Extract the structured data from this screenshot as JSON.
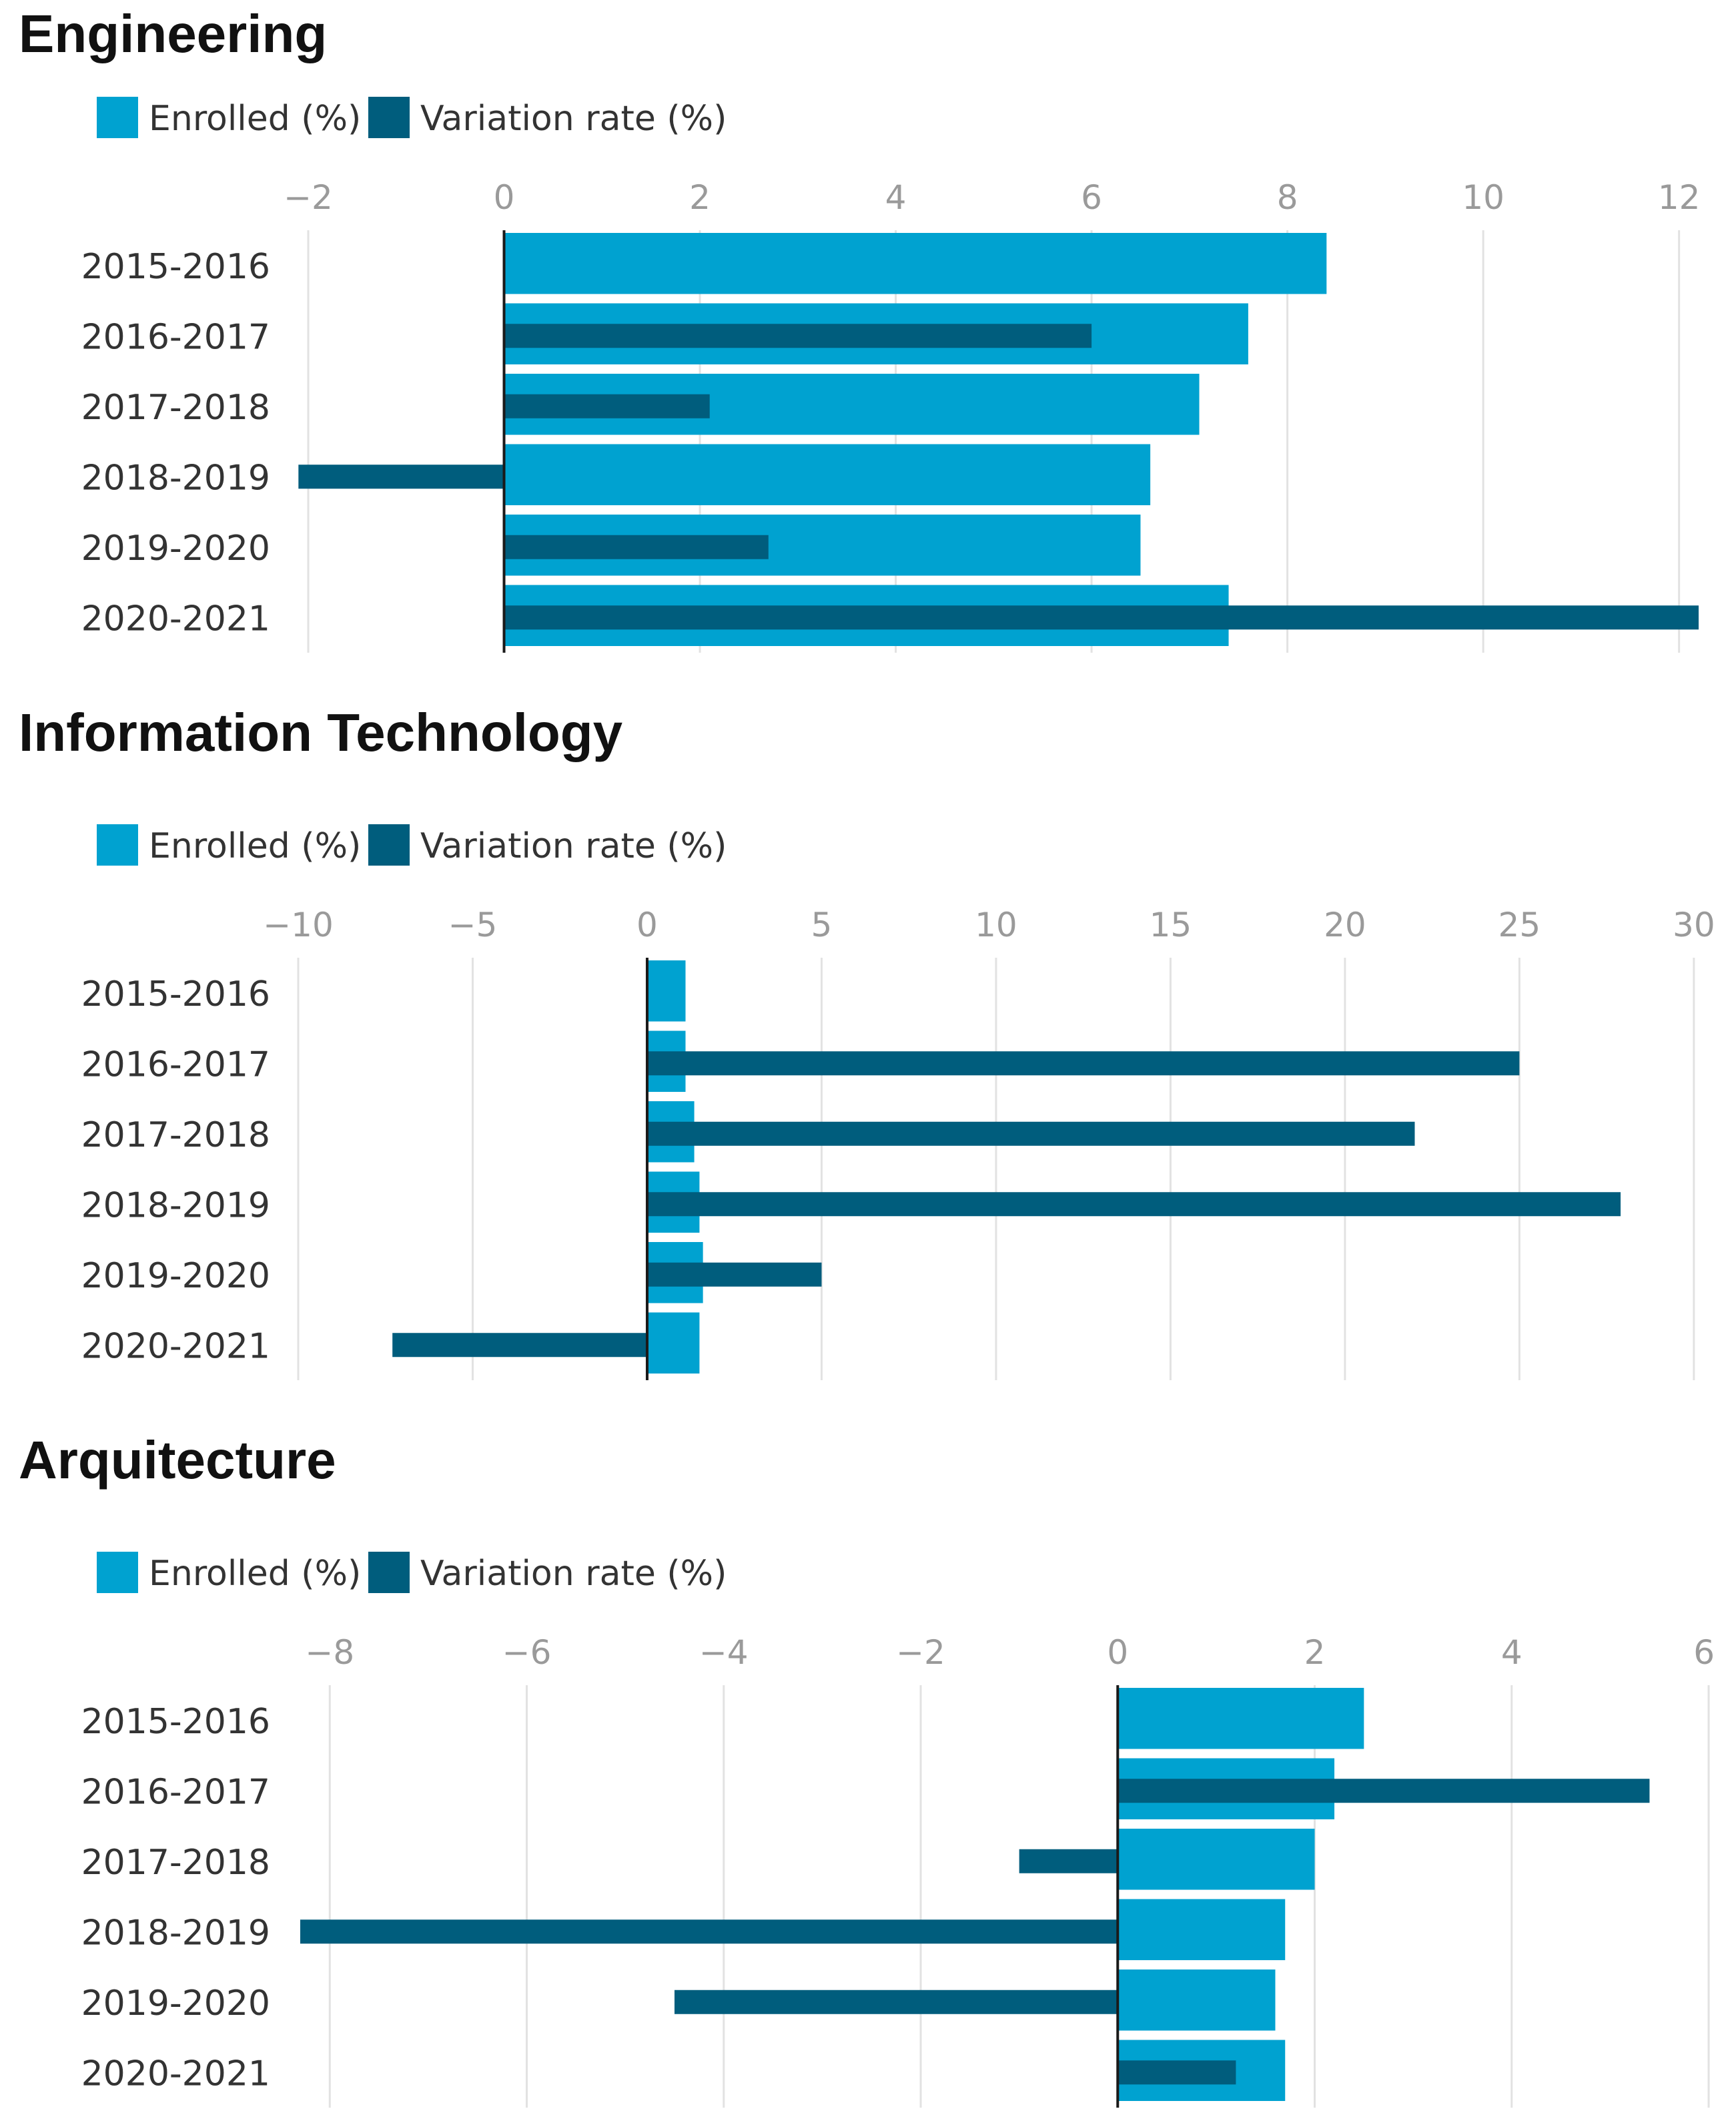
{
  "colors": {
    "enrolled": "#00a2d0",
    "variation": "#005d7d",
    "grid": "#e2e2e2",
    "axis": "#1a1a1a"
  },
  "chart_data": [
    {
      "type": "bar",
      "orientation": "horizontal",
      "title": "Engineering",
      "categories": [
        "2015-2016",
        "2016-2017",
        "2017-2018",
        "2018-2019",
        "2019-2020",
        "2020-2021"
      ],
      "series": [
        {
          "name": "Enrolled (%)",
          "values": [
            8.4,
            7.6,
            7.1,
            6.6,
            6.5,
            7.4
          ]
        },
        {
          "name": "Variation rate (%)",
          "values": [
            null,
            6.0,
            2.1,
            -2.1,
            2.7,
            12.2
          ]
        }
      ],
      "xlim": [
        -2,
        12.2
      ],
      "ticks": [
        -2,
        0,
        2,
        4,
        6,
        8,
        10,
        12
      ],
      "tick_labels": [
        "−2",
        "0",
        "2",
        "4",
        "6",
        "8",
        "10",
        "12"
      ],
      "legend": "top-left",
      "grid": true
    },
    {
      "type": "bar",
      "orientation": "horizontal",
      "title": "Information Technology",
      "categories": [
        "2015-2016",
        "2016-2017",
        "2017-2018",
        "2018-2019",
        "2019-2020",
        "2020-2021"
      ],
      "series": [
        {
          "name": "Enrolled (%)",
          "values": [
            1.1,
            1.1,
            1.35,
            1.5,
            1.6,
            1.5
          ]
        },
        {
          "name": "Variation rate (%)",
          "values": [
            null,
            25.0,
            22.0,
            27.9,
            5.0,
            -7.3
          ]
        }
      ],
      "xlim": [
        -10,
        30.5
      ],
      "ticks": [
        -10,
        -5,
        0,
        5,
        10,
        15,
        20,
        25,
        30
      ],
      "tick_labels": [
        "−10",
        "−5",
        "0",
        "5",
        "10",
        "15",
        "20",
        "25",
        "30"
      ],
      "legend": "top-left",
      "grid": true
    },
    {
      "type": "bar",
      "orientation": "horizontal",
      "title": "Arquitecture",
      "categories": [
        "2015-2016",
        "2016-2017",
        "2017-2018",
        "2018-2019",
        "2019-2020",
        "2020-2021"
      ],
      "series": [
        {
          "name": "Enrolled (%)",
          "values": [
            2.5,
            2.2,
            2.0,
            1.7,
            1.6,
            1.7
          ]
        },
        {
          "name": "Variation rate (%)",
          "values": [
            null,
            5.4,
            -1.0,
            -8.3,
            -4.5,
            1.2
          ]
        }
      ],
      "xlim": [
        -8.3,
        6
      ],
      "ticks": [
        -8,
        -6,
        -4,
        -2,
        0,
        2,
        4,
        6
      ],
      "tick_labels": [
        "−8",
        "−6",
        "−4",
        "−2",
        "0",
        "2",
        "4",
        "6"
      ],
      "legend": "top-left",
      "grid": true
    }
  ]
}
